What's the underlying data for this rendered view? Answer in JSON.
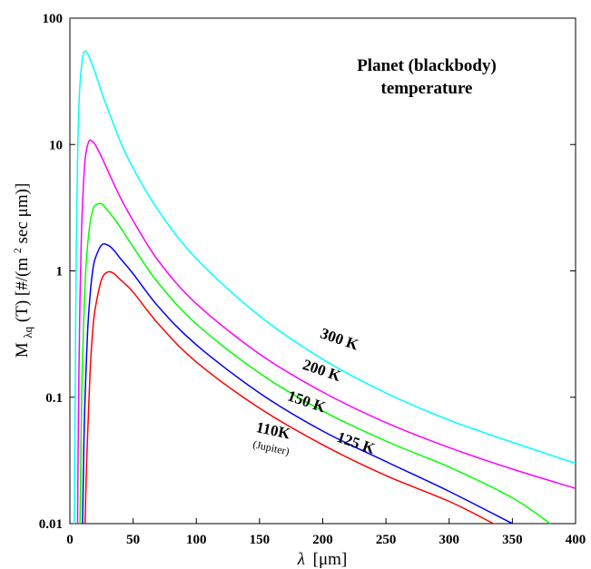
{
  "chart_data": {
    "type": "line",
    "xlabel_sym": "λ",
    "xlabel_unit": "[μm]",
    "ylabel_main": "M",
    "ylabel_sub": "λq",
    "ylabel_rest": "(T) [#/(m",
    "ylabel_sup": "2",
    "ylabel_end": " sec μm)]",
    "xlim": [
      0,
      400
    ],
    "ylim": [
      0.01,
      100
    ],
    "yscale": "log",
    "x_ticks": [
      0,
      50,
      100,
      150,
      200,
      250,
      300,
      350,
      400
    ],
    "x_tick_labels": [
      "0",
      "50",
      "100",
      "150",
      "200",
      "250",
      "300",
      "350",
      "400"
    ],
    "y_ticks": [
      0.01,
      0.1,
      1,
      10,
      100
    ],
    "y_tick_labels": [
      "0.01",
      "0.1",
      "1",
      "10",
      "100"
    ],
    "annotation_line1": "Planet (blackbody)",
    "annotation_line2": "temperature",
    "series": [
      {
        "name": "300 K",
        "color": "#00ffff",
        "x": [
          3.5,
          4,
          5,
          6,
          7,
          8,
          10,
          12,
          15,
          20,
          25,
          30,
          40,
          50,
          70,
          100,
          150,
          200,
          250,
          300,
          350,
          400
        ],
        "y": [
          0.01,
          0.06,
          1.4,
          7.5,
          18,
          30,
          48,
          55,
          50,
          37,
          26,
          19,
          10.5,
          6.5,
          3.0,
          1.25,
          0.44,
          0.2,
          0.108,
          0.066,
          0.044,
          0.03
        ]
      },
      {
        "name": "200 K",
        "color": "#ff00ff",
        "x": [
          6,
          7,
          8,
          9,
          10,
          12,
          15,
          18,
          20,
          25,
          30,
          40,
          50,
          70,
          100,
          150,
          200,
          250,
          300,
          350,
          400
        ],
        "y": [
          0.01,
          0.12,
          0.6,
          1.7,
          3.4,
          7.5,
          10.6,
          10.5,
          10,
          8,
          6.2,
          3.8,
          2.5,
          1.2,
          0.55,
          0.22,
          0.11,
          0.063,
          0.04,
          0.027,
          0.019
        ]
      },
      {
        "name": "150 K",
        "color": "#00ff00",
        "x": [
          8,
          9,
          10,
          12,
          14,
          16,
          18,
          20,
          25,
          30,
          35,
          40,
          50,
          70,
          100,
          150,
          200,
          250,
          300,
          350,
          380
        ],
        "y": [
          0.01,
          0.06,
          0.2,
          0.8,
          1.6,
          2.4,
          3.0,
          3.3,
          3.4,
          3.0,
          2.6,
          2.2,
          1.55,
          0.8,
          0.38,
          0.155,
          0.078,
          0.045,
          0.028,
          0.016,
          0.01
        ]
      },
      {
        "name": "125 K",
        "color": "#0000ff",
        "x": [
          10,
          11,
          12,
          14,
          16,
          18,
          20,
          25,
          30,
          35,
          40,
          50,
          70,
          100,
          150,
          200,
          250,
          300,
          350
        ],
        "y": [
          0.01,
          0.04,
          0.1,
          0.33,
          0.65,
          1.0,
          1.25,
          1.6,
          1.6,
          1.45,
          1.25,
          0.95,
          0.52,
          0.26,
          0.108,
          0.054,
          0.031,
          0.018,
          0.01
        ]
      },
      {
        "name": "110K",
        "color": "#ff0000",
        "x": [
          12,
          13,
          14,
          16,
          18,
          20,
          25,
          30,
          35,
          40,
          50,
          70,
          100,
          150,
          200,
          250,
          300,
          335
        ],
        "y": [
          0.01,
          0.025,
          0.05,
          0.16,
          0.33,
          0.5,
          0.85,
          0.98,
          0.95,
          0.85,
          0.68,
          0.38,
          0.19,
          0.082,
          0.042,
          0.024,
          0.015,
          0.01
        ]
      }
    ],
    "curve_labels": [
      {
        "text": "300 K",
        "x": 212,
        "y": 0.265,
        "rot": 19
      },
      {
        "text": "200 K",
        "x": 198,
        "y": 0.15,
        "rot": 19
      },
      {
        "text": "150 K",
        "x": 186,
        "y": 0.085,
        "rot": 19
      },
      {
        "text": "125 K",
        "x": 225,
        "y": 0.04,
        "rot": 19
      },
      {
        "text": "110K",
        "x": 160,
        "y": 0.05,
        "rot": 12,
        "sub": "(Jupiter)"
      }
    ]
  }
}
